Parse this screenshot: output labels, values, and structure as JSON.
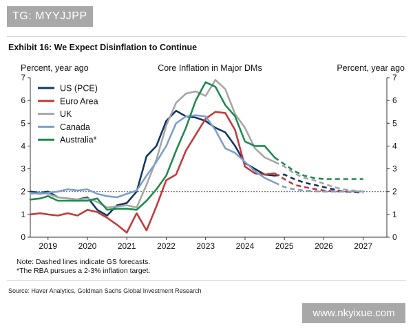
{
  "watermark_top": "TG: MYYJJPP",
  "exhibit_title": "Exhibit 16: We Expect Disinflation to Continue",
  "source": "Source: Haver Analytics, Goldman Sachs Global Investment Research",
  "watermark_bottom": "www.nkyixue.com",
  "chart_data": {
    "type": "line",
    "title": "Core Inflation in Major DMs",
    "ylabel_left": "Percent, year ago",
    "ylabel_right": "Percent, year ago",
    "xlim": [
      2018.55,
      2027.6
    ],
    "ylim": [
      0,
      7
    ],
    "yticks": [
      0,
      1,
      2,
      3,
      4,
      5,
      6,
      7
    ],
    "xticks": [
      2019,
      2020,
      2021,
      2022,
      2023,
      2024,
      2025,
      2026,
      2027
    ],
    "reference_line": 2,
    "notes": [
      "Note: Dashed lines indicate GS forecasts.",
      "*The RBA pursues a 2-3% inflation target."
    ],
    "series": [
      {
        "name": "US (PCE)",
        "color": "#13365f",
        "actual": [
          [
            2018.55,
            2.0
          ],
          [
            2018.8,
            1.95
          ],
          [
            2019.0,
            2.0
          ],
          [
            2019.25,
            1.75
          ],
          [
            2019.5,
            1.7
          ],
          [
            2019.75,
            1.65
          ],
          [
            2020.0,
            1.75
          ],
          [
            2020.25,
            1.2
          ],
          [
            2020.5,
            0.95
          ],
          [
            2020.75,
            1.4
          ],
          [
            2021.0,
            1.5
          ],
          [
            2021.25,
            2.0
          ],
          [
            2021.5,
            3.55
          ],
          [
            2021.75,
            4.0
          ],
          [
            2022.0,
            5.1
          ],
          [
            2022.25,
            5.55
          ],
          [
            2022.5,
            5.3
          ],
          [
            2022.75,
            5.25
          ],
          [
            2023.0,
            5.1
          ],
          [
            2023.25,
            4.8
          ],
          [
            2023.5,
            4.6
          ],
          [
            2023.75,
            4.0
          ],
          [
            2024.0,
            3.25
          ],
          [
            2024.25,
            3.0
          ],
          [
            2024.5,
            2.75
          ],
          [
            2024.75,
            2.7
          ]
        ],
        "forecast": [
          [
            2024.75,
            2.7
          ],
          [
            2025.0,
            2.75
          ],
          [
            2025.25,
            2.55
          ],
          [
            2025.5,
            2.4
          ],
          [
            2025.75,
            2.3
          ],
          [
            2026.0,
            2.2
          ],
          [
            2026.25,
            2.1
          ],
          [
            2026.5,
            2.0
          ],
          [
            2026.75,
            1.98
          ],
          [
            2027.0,
            1.95
          ]
        ]
      },
      {
        "name": "Euro Area",
        "color": "#c43a3a",
        "actual": [
          [
            2018.55,
            1.0
          ],
          [
            2018.8,
            1.05
          ],
          [
            2019.0,
            1.0
          ],
          [
            2019.25,
            0.95
          ],
          [
            2019.5,
            1.05
          ],
          [
            2019.75,
            0.95
          ],
          [
            2020.0,
            1.2
          ],
          [
            2020.25,
            1.1
          ],
          [
            2020.5,
            0.85
          ],
          [
            2020.75,
            0.55
          ],
          [
            2021.0,
            0.2
          ],
          [
            2021.25,
            1.05
          ],
          [
            2021.5,
            0.3
          ],
          [
            2021.75,
            1.35
          ],
          [
            2022.0,
            2.5
          ],
          [
            2022.25,
            2.75
          ],
          [
            2022.5,
            3.8
          ],
          [
            2022.75,
            4.5
          ],
          [
            2023.0,
            5.2
          ],
          [
            2023.25,
            5.5
          ],
          [
            2023.5,
            5.45
          ],
          [
            2023.75,
            4.7
          ],
          [
            2024.0,
            3.1
          ],
          [
            2024.25,
            2.8
          ],
          [
            2024.5,
            2.75
          ],
          [
            2024.75,
            2.8
          ]
        ],
        "forecast": [
          [
            2024.75,
            2.8
          ],
          [
            2025.0,
            2.55
          ],
          [
            2025.25,
            2.3
          ],
          [
            2025.5,
            2.2
          ],
          [
            2025.75,
            2.12
          ],
          [
            2026.0,
            2.05
          ],
          [
            2026.25,
            2.02
          ],
          [
            2026.5,
            2.0
          ],
          [
            2026.75,
            2.0
          ],
          [
            2027.0,
            2.0
          ]
        ]
      },
      {
        "name": "UK",
        "color": "#a6a6a6",
        "actual": [
          [
            2018.55,
            1.9
          ],
          [
            2018.8,
            1.95
          ],
          [
            2019.0,
            1.9
          ],
          [
            2019.25,
            1.75
          ],
          [
            2019.5,
            1.7
          ],
          [
            2019.75,
            1.65
          ],
          [
            2020.0,
            1.7
          ],
          [
            2020.25,
            1.55
          ],
          [
            2020.5,
            1.3
          ],
          [
            2020.75,
            1.35
          ],
          [
            2021.0,
            1.4
          ],
          [
            2021.25,
            1.3
          ],
          [
            2021.5,
            2.3
          ],
          [
            2021.75,
            3.4
          ],
          [
            2022.0,
            4.9
          ],
          [
            2022.25,
            5.9
          ],
          [
            2022.5,
            6.3
          ],
          [
            2022.75,
            6.4
          ],
          [
            2023.0,
            6.2
          ],
          [
            2023.25,
            6.9
          ],
          [
            2023.5,
            6.5
          ],
          [
            2023.75,
            5.4
          ],
          [
            2024.0,
            4.8
          ],
          [
            2024.25,
            3.9
          ],
          [
            2024.5,
            3.5
          ],
          [
            2024.75,
            3.3
          ]
        ],
        "forecast": [
          [
            2024.75,
            3.3
          ],
          [
            2025.0,
            3.1
          ],
          [
            2025.25,
            2.8
          ],
          [
            2025.5,
            2.6
          ],
          [
            2025.75,
            2.5
          ],
          [
            2026.0,
            2.35
          ],
          [
            2026.25,
            2.2
          ],
          [
            2026.5,
            2.1
          ],
          [
            2026.75,
            2.05
          ],
          [
            2027.0,
            2.0
          ]
        ]
      },
      {
        "name": "Canada",
        "color": "#7d9fcc",
        "actual": [
          [
            2018.55,
            1.95
          ],
          [
            2018.8,
            1.9
          ],
          [
            2019.0,
            1.95
          ],
          [
            2019.25,
            2.0
          ],
          [
            2019.5,
            2.1
          ],
          [
            2019.75,
            2.05
          ],
          [
            2020.0,
            2.1
          ],
          [
            2020.25,
            1.9
          ],
          [
            2020.5,
            1.8
          ],
          [
            2020.75,
            1.75
          ],
          [
            2021.0,
            1.9
          ],
          [
            2021.25,
            2.05
          ],
          [
            2021.5,
            2.7
          ],
          [
            2021.75,
            3.3
          ],
          [
            2022.0,
            4.0
          ],
          [
            2022.25,
            5.0
          ],
          [
            2022.5,
            5.3
          ],
          [
            2022.75,
            5.35
          ],
          [
            2023.0,
            5.3
          ],
          [
            2023.25,
            4.7
          ],
          [
            2023.5,
            3.9
          ],
          [
            2023.75,
            3.7
          ],
          [
            2024.0,
            3.3
          ],
          [
            2024.25,
            2.9
          ],
          [
            2024.5,
            2.6
          ],
          [
            2024.75,
            2.4
          ]
        ],
        "forecast": [
          [
            2024.75,
            2.4
          ],
          [
            2025.0,
            2.2
          ],
          [
            2025.25,
            2.1
          ],
          [
            2025.5,
            2.05
          ],
          [
            2025.75,
            2.02
          ],
          [
            2026.0,
            2.0
          ],
          [
            2026.25,
            2.0
          ],
          [
            2026.5,
            2.0
          ],
          [
            2026.75,
            2.0
          ],
          [
            2027.0,
            2.0
          ]
        ]
      },
      {
        "name": "Australia*",
        "color": "#1f8a4c",
        "actual": [
          [
            2018.55,
            1.65
          ],
          [
            2018.8,
            1.7
          ],
          [
            2019.0,
            1.8
          ],
          [
            2019.25,
            1.6
          ],
          [
            2019.5,
            1.6
          ],
          [
            2019.75,
            1.6
          ],
          [
            2020.0,
            1.6
          ],
          [
            2020.25,
            1.7
          ],
          [
            2020.5,
            1.2
          ],
          [
            2020.75,
            1.25
          ],
          [
            2021.0,
            1.25
          ],
          [
            2021.25,
            1.2
          ],
          [
            2021.5,
            1.6
          ],
          [
            2021.75,
            2.1
          ],
          [
            2022.0,
            2.7
          ],
          [
            2022.25,
            3.8
          ],
          [
            2022.5,
            4.8
          ],
          [
            2022.75,
            6.0
          ],
          [
            2023.0,
            6.8
          ],
          [
            2023.25,
            6.6
          ],
          [
            2023.5,
            5.8
          ],
          [
            2023.75,
            5.3
          ],
          [
            2024.0,
            4.2
          ],
          [
            2024.25,
            4.0
          ],
          [
            2024.5,
            4.0
          ],
          [
            2024.75,
            3.5
          ]
        ],
        "forecast": [
          [
            2024.75,
            3.5
          ],
          [
            2025.0,
            3.2
          ],
          [
            2025.25,
            2.9
          ],
          [
            2025.5,
            2.7
          ],
          [
            2025.75,
            2.6
          ],
          [
            2026.0,
            2.55
          ],
          [
            2026.25,
            2.55
          ],
          [
            2026.5,
            2.55
          ],
          [
            2026.75,
            2.55
          ],
          [
            2027.0,
            2.55
          ]
        ]
      }
    ]
  }
}
